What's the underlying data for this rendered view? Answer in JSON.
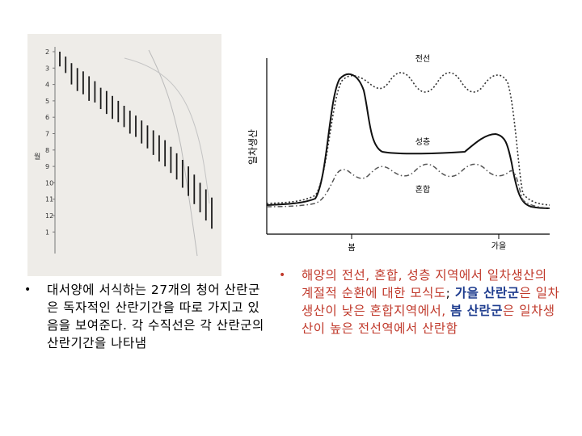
{
  "left_figure": {
    "y_label": "월",
    "y_ticks": [
      "2",
      "3",
      "4",
      "5",
      "6",
      "7",
      "8",
      "9",
      "10",
      "11",
      "12",
      "1"
    ],
    "spawning_periods": [
      {
        "start": 2.0,
        "end": 2.9
      },
      {
        "start": 2.3,
        "end": 3.3
      },
      {
        "start": 2.7,
        "end": 4.0
      },
      {
        "start": 3.0,
        "end": 4.4
      },
      {
        "start": 3.2,
        "end": 4.6
      },
      {
        "start": 3.5,
        "end": 5.0
      },
      {
        "start": 3.8,
        "end": 5.1
      },
      {
        "start": 4.2,
        "end": 5.5
      },
      {
        "start": 4.4,
        "end": 5.8
      },
      {
        "start": 4.7,
        "end": 6.1
      },
      {
        "start": 5.0,
        "end": 6.3
      },
      {
        "start": 5.3,
        "end": 6.6
      },
      {
        "start": 5.6,
        "end": 7.0
      },
      {
        "start": 5.9,
        "end": 7.2
      },
      {
        "start": 6.2,
        "end": 7.6
      },
      {
        "start": 6.5,
        "end": 7.9
      },
      {
        "start": 6.8,
        "end": 8.3
      },
      {
        "start": 7.1,
        "end": 8.7
      },
      {
        "start": 7.4,
        "end": 9.0
      },
      {
        "start": 7.8,
        "end": 9.4
      },
      {
        "start": 8.2,
        "end": 9.8
      },
      {
        "start": 8.6,
        "end": 10.3
      },
      {
        "start": 9.0,
        "end": 10.8
      },
      {
        "start": 9.5,
        "end": 11.3
      },
      {
        "start": 10.0,
        "end": 11.8
      },
      {
        "start": 10.4,
        "end": 12.3
      },
      {
        "start": 10.9,
        "end": 12.8
      }
    ]
  },
  "right_figure": {
    "y_label": "일차생산",
    "x_labels": {
      "spring": "봄",
      "autumn": "가을"
    },
    "curve_labels": {
      "frontal": "전선",
      "stratified": "성층",
      "mixed": "혼합"
    },
    "colors": {
      "frontal": "#222222",
      "stratified": "#222222",
      "mixed": "#555555"
    }
  },
  "left_bullet": {
    "marker": "•",
    "text": "대서양에 서식하는 27개의 청어 산란군은 독자적인 산란기간을 따로 가지고 있음을 보여준다. 각 수직선은 각 산란군의 산란기간을 나타냄"
  },
  "right_bullet": {
    "marker": "•",
    "part1": "해양의 전선, 혼합, 성층 지역에서 일차생산의 계절적 순환에 대한 모식도",
    "part2": "; ",
    "part3": "가을 산란군",
    "part4": "은 일차생산이 낮은 혼합지역에서, ",
    "part5": "봄 산란군",
    "part6": "은 일차생산이 높은 전선역에서 산란함"
  },
  "accent_colors": {
    "red": "#c0392b",
    "blue": "#1f3d8f"
  }
}
